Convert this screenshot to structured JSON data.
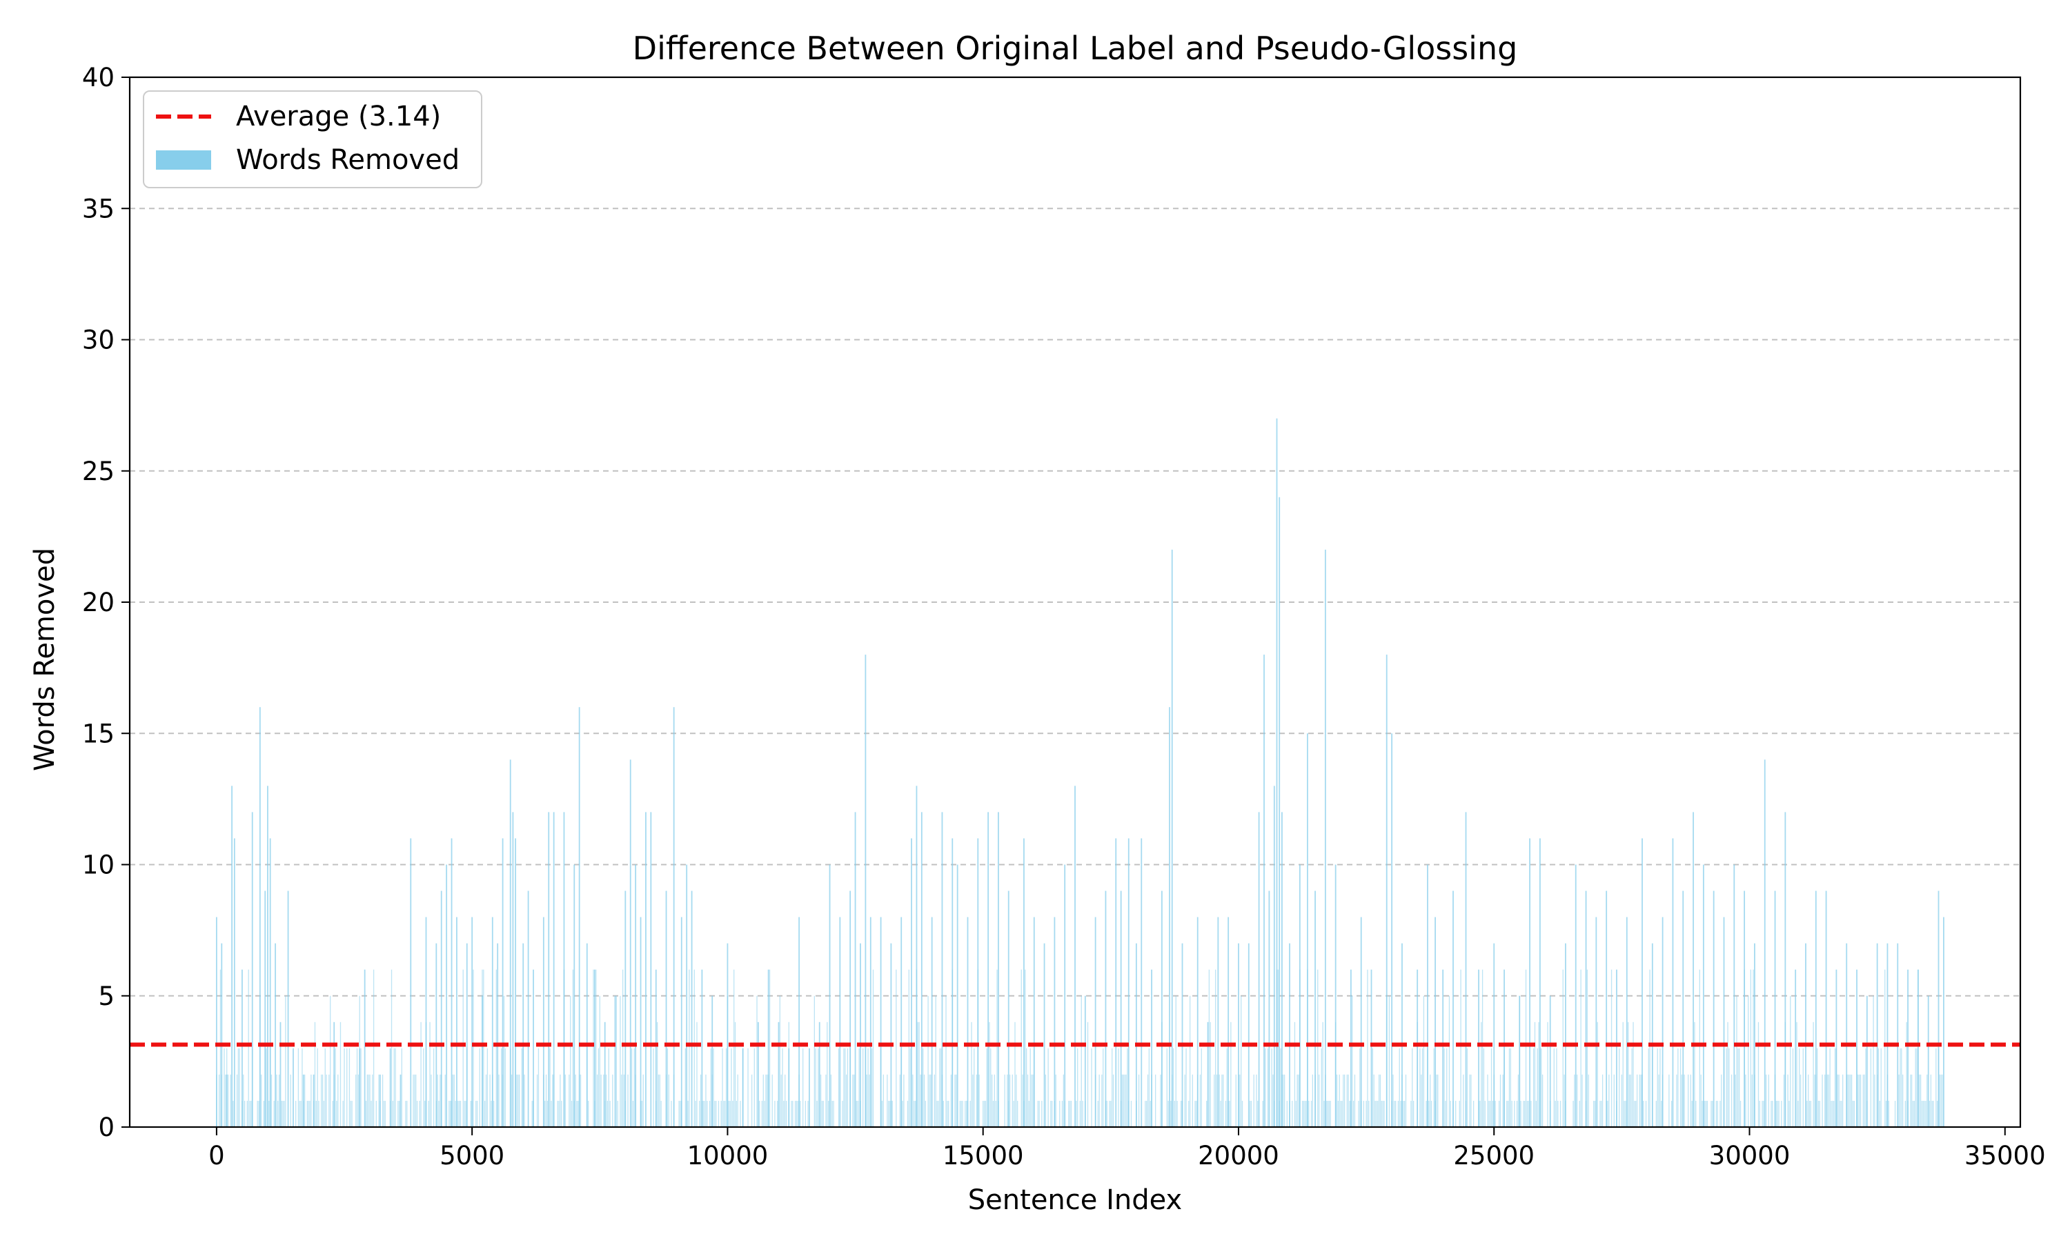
{
  "chart_data": {
    "type": "bar",
    "title": "Difference Between Original Label and Pseudo-Glossing",
    "xlabel": "Sentence Index",
    "ylabel": "Words Removed",
    "xlim": [
      -1700,
      35300
    ],
    "ylim": [
      0,
      40
    ],
    "x_ticks": [
      0,
      5000,
      10000,
      15000,
      20000,
      25000,
      30000,
      35000
    ],
    "y_ticks": [
      0,
      5,
      10,
      15,
      20,
      25,
      30,
      35,
      40
    ],
    "grid": "y-dashed",
    "legend_position": "top-left",
    "average": {
      "name": "Average (3.14)",
      "value": 3.14,
      "color": "#ee1111",
      "style": "dashed"
    },
    "bars": {
      "name": "Words Removed",
      "color": "#87ceeb",
      "peaks": [
        {
          "x": 0,
          "y": 8
        },
        {
          "x": 100,
          "y": 7
        },
        {
          "x": 200,
          "y": 2
        },
        {
          "x": 300,
          "y": 13
        },
        {
          "x": 350,
          "y": 11
        },
        {
          "x": 500,
          "y": 6
        },
        {
          "x": 700,
          "y": 12
        },
        {
          "x": 850,
          "y": 16
        },
        {
          "x": 950,
          "y": 9
        },
        {
          "x": 1000,
          "y": 13
        },
        {
          "x": 1050,
          "y": 11
        },
        {
          "x": 1150,
          "y": 7
        },
        {
          "x": 1250,
          "y": 4
        },
        {
          "x": 1400,
          "y": 9
        },
        {
          "x": 1500,
          "y": 3
        },
        {
          "x": 1700,
          "y": 2
        },
        {
          "x": 1900,
          "y": 2
        },
        {
          "x": 2300,
          "y": 4
        },
        {
          "x": 2800,
          "y": 3
        },
        {
          "x": 2900,
          "y": 6
        },
        {
          "x": 3200,
          "y": 2
        },
        {
          "x": 3400,
          "y": 3
        },
        {
          "x": 3600,
          "y": 2
        },
        {
          "x": 3800,
          "y": 11
        },
        {
          "x": 4100,
          "y": 8
        },
        {
          "x": 4300,
          "y": 7
        },
        {
          "x": 4400,
          "y": 9
        },
        {
          "x": 4500,
          "y": 10
        },
        {
          "x": 4600,
          "y": 11
        },
        {
          "x": 4700,
          "y": 8
        },
        {
          "x": 4900,
          "y": 7
        },
        {
          "x": 5000,
          "y": 8
        },
        {
          "x": 5200,
          "y": 5
        },
        {
          "x": 5400,
          "y": 8
        },
        {
          "x": 5500,
          "y": 7
        },
        {
          "x": 5600,
          "y": 11
        },
        {
          "x": 5750,
          "y": 14
        },
        {
          "x": 5800,
          "y": 12
        },
        {
          "x": 5850,
          "y": 11
        },
        {
          "x": 6000,
          "y": 7
        },
        {
          "x": 6100,
          "y": 9
        },
        {
          "x": 6200,
          "y": 6
        },
        {
          "x": 6400,
          "y": 8
        },
        {
          "x": 6500,
          "y": 12
        },
        {
          "x": 6600,
          "y": 12
        },
        {
          "x": 6800,
          "y": 12
        },
        {
          "x": 7000,
          "y": 10
        },
        {
          "x": 7100,
          "y": 16
        },
        {
          "x": 7250,
          "y": 7
        },
        {
          "x": 7400,
          "y": 6
        },
        {
          "x": 7600,
          "y": 4
        },
        {
          "x": 7800,
          "y": 5
        },
        {
          "x": 8000,
          "y": 9
        },
        {
          "x": 8100,
          "y": 14
        },
        {
          "x": 8200,
          "y": 10
        },
        {
          "x": 8300,
          "y": 8
        },
        {
          "x": 8400,
          "y": 12
        },
        {
          "x": 8500,
          "y": 12
        },
        {
          "x": 8600,
          "y": 6
        },
        {
          "x": 8800,
          "y": 9
        },
        {
          "x": 8950,
          "y": 16
        },
        {
          "x": 9100,
          "y": 8
        },
        {
          "x": 9200,
          "y": 10
        },
        {
          "x": 9300,
          "y": 9
        },
        {
          "x": 9500,
          "y": 6
        },
        {
          "x": 9700,
          "y": 5
        },
        {
          "x": 10000,
          "y": 7
        },
        {
          "x": 10300,
          "y": 3
        },
        {
          "x": 10600,
          "y": 4
        },
        {
          "x": 10800,
          "y": 6
        },
        {
          "x": 11000,
          "y": 4
        },
        {
          "x": 11200,
          "y": 3
        },
        {
          "x": 11400,
          "y": 8
        },
        {
          "x": 11600,
          "y": 3
        },
        {
          "x": 11800,
          "y": 4
        },
        {
          "x": 12000,
          "y": 10
        },
        {
          "x": 12200,
          "y": 8
        },
        {
          "x": 12400,
          "y": 9
        },
        {
          "x": 12500,
          "y": 12
        },
        {
          "x": 12600,
          "y": 7
        },
        {
          "x": 12700,
          "y": 18
        },
        {
          "x": 12800,
          "y": 8
        },
        {
          "x": 13000,
          "y": 8
        },
        {
          "x": 13200,
          "y": 7
        },
        {
          "x": 13400,
          "y": 8
        },
        {
          "x": 13600,
          "y": 11
        },
        {
          "x": 13700,
          "y": 13
        },
        {
          "x": 13800,
          "y": 12
        },
        {
          "x": 14000,
          "y": 8
        },
        {
          "x": 14200,
          "y": 12
        },
        {
          "x": 14400,
          "y": 11
        },
        {
          "x": 14500,
          "y": 10
        },
        {
          "x": 14700,
          "y": 8
        },
        {
          "x": 14900,
          "y": 11
        },
        {
          "x": 15100,
          "y": 12
        },
        {
          "x": 15300,
          "y": 12
        },
        {
          "x": 15500,
          "y": 9
        },
        {
          "x": 15800,
          "y": 11
        },
        {
          "x": 16000,
          "y": 8
        },
        {
          "x": 16200,
          "y": 7
        },
        {
          "x": 16400,
          "y": 8
        },
        {
          "x": 16600,
          "y": 10
        },
        {
          "x": 16800,
          "y": 13
        },
        {
          "x": 17000,
          "y": 5
        },
        {
          "x": 17200,
          "y": 8
        },
        {
          "x": 17400,
          "y": 9
        },
        {
          "x": 17600,
          "y": 11
        },
        {
          "x": 17700,
          "y": 9
        },
        {
          "x": 17850,
          "y": 11
        },
        {
          "x": 18000,
          "y": 7
        },
        {
          "x": 18100,
          "y": 11
        },
        {
          "x": 18300,
          "y": 6
        },
        {
          "x": 18500,
          "y": 9
        },
        {
          "x": 18650,
          "y": 16
        },
        {
          "x": 18700,
          "y": 22
        },
        {
          "x": 18900,
          "y": 7
        },
        {
          "x": 19200,
          "y": 8
        },
        {
          "x": 19400,
          "y": 4
        },
        {
          "x": 19600,
          "y": 8
        },
        {
          "x": 19800,
          "y": 8
        },
        {
          "x": 20000,
          "y": 7
        },
        {
          "x": 20200,
          "y": 7
        },
        {
          "x": 20400,
          "y": 12
        },
        {
          "x": 20500,
          "y": 18
        },
        {
          "x": 20600,
          "y": 9
        },
        {
          "x": 20700,
          "y": 13
        },
        {
          "x": 20750,
          "y": 27
        },
        {
          "x": 20800,
          "y": 24
        },
        {
          "x": 20850,
          "y": 12
        },
        {
          "x": 21000,
          "y": 7
        },
        {
          "x": 21200,
          "y": 10
        },
        {
          "x": 21350,
          "y": 15
        },
        {
          "x": 21500,
          "y": 9
        },
        {
          "x": 21700,
          "y": 22
        },
        {
          "x": 21900,
          "y": 10
        },
        {
          "x": 22200,
          "y": 6
        },
        {
          "x": 22400,
          "y": 8
        },
        {
          "x": 22600,
          "y": 6
        },
        {
          "x": 22900,
          "y": 18
        },
        {
          "x": 23000,
          "y": 15
        },
        {
          "x": 23200,
          "y": 7
        },
        {
          "x": 23500,
          "y": 6
        },
        {
          "x": 23700,
          "y": 10
        },
        {
          "x": 23850,
          "y": 8
        },
        {
          "x": 24000,
          "y": 6
        },
        {
          "x": 24200,
          "y": 9
        },
        {
          "x": 24450,
          "y": 12
        },
        {
          "x": 24700,
          "y": 6
        },
        {
          "x": 25000,
          "y": 7
        },
        {
          "x": 25200,
          "y": 6
        },
        {
          "x": 25500,
          "y": 5
        },
        {
          "x": 25700,
          "y": 11
        },
        {
          "x": 25900,
          "y": 11
        },
        {
          "x": 26100,
          "y": 5
        },
        {
          "x": 26400,
          "y": 7
        },
        {
          "x": 26600,
          "y": 10
        },
        {
          "x": 26800,
          "y": 9
        },
        {
          "x": 27000,
          "y": 8
        },
        {
          "x": 27200,
          "y": 9
        },
        {
          "x": 27400,
          "y": 6
        },
        {
          "x": 27600,
          "y": 8
        },
        {
          "x": 27900,
          "y": 11
        },
        {
          "x": 28100,
          "y": 7
        },
        {
          "x": 28300,
          "y": 8
        },
        {
          "x": 28500,
          "y": 11
        },
        {
          "x": 28700,
          "y": 9
        },
        {
          "x": 28900,
          "y": 12
        },
        {
          "x": 29100,
          "y": 10
        },
        {
          "x": 29300,
          "y": 9
        },
        {
          "x": 29500,
          "y": 8
        },
        {
          "x": 29700,
          "y": 10
        },
        {
          "x": 29900,
          "y": 9
        },
        {
          "x": 30100,
          "y": 7
        },
        {
          "x": 30300,
          "y": 14
        },
        {
          "x": 30500,
          "y": 9
        },
        {
          "x": 30700,
          "y": 12
        },
        {
          "x": 30900,
          "y": 6
        },
        {
          "x": 31100,
          "y": 7
        },
        {
          "x": 31300,
          "y": 9
        },
        {
          "x": 31500,
          "y": 9
        },
        {
          "x": 31700,
          "y": 6
        },
        {
          "x": 31900,
          "y": 7
        },
        {
          "x": 32100,
          "y": 6
        },
        {
          "x": 32300,
          "y": 5
        },
        {
          "x": 32500,
          "y": 7
        },
        {
          "x": 32700,
          "y": 7
        },
        {
          "x": 32900,
          "y": 7
        },
        {
          "x": 33100,
          "y": 6
        },
        {
          "x": 33300,
          "y": 6
        },
        {
          "x": 33500,
          "y": 5
        },
        {
          "x": 33700,
          "y": 9
        },
        {
          "x": 33800,
          "y": 8
        }
      ],
      "background": {
        "x_start": 0,
        "x_end": 33800,
        "step": 25,
        "typical_max": 4
      }
    }
  }
}
